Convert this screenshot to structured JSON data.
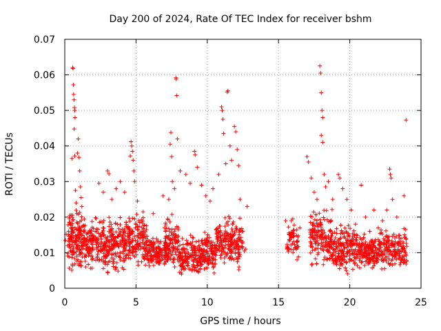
{
  "chart_data": {
    "type": "scatter",
    "title": "Day 200 of 2024, Rate Of TEC Index for receiver bshm",
    "xlabel": "GPS time / hours",
    "ylabel": "ROTI / TECUs",
    "xlim": [
      0,
      25
    ],
    "ylim": [
      0,
      0.07
    ],
    "x_ticks": [
      "0",
      "5",
      "10",
      "15",
      "20",
      "25"
    ],
    "y_ticks": [
      "0",
      "0.01",
      "0.02",
      "0.03",
      "0.04",
      "0.05",
      "0.06",
      "0.07"
    ],
    "grid": true,
    "marker": "plus",
    "color": "#ff0000",
    "series": [
      {
        "points": [
          [
            0.05,
            0.0135
          ],
          [
            0.1,
            0.0152
          ],
          [
            0.2,
            0.012
          ],
          [
            0.3,
            0.0088
          ],
          [
            0.35,
            0.02
          ],
          [
            0.45,
            0.015
          ],
          [
            0.5,
            0.0365
          ],
          [
            0.55,
            0.062
          ],
          [
            0.58,
            0.0618
          ],
          [
            0.6,
            0.0572
          ],
          [
            0.62,
            0.0545
          ],
          [
            0.65,
            0.053
          ],
          [
            0.68,
            0.0508
          ],
          [
            0.7,
            0.05
          ],
          [
            0.72,
            0.048
          ],
          [
            0.66,
            0.0448
          ],
          [
            0.7,
            0.0372
          ],
          [
            0.75,
            0.0275
          ],
          [
            0.8,
            0.024
          ],
          [
            0.85,
            0.021
          ],
          [
            0.9,
            0.038
          ],
          [
            0.95,
            0.042
          ],
          [
            1.0,
            0.0368
          ],
          [
            1.05,
            0.033
          ],
          [
            1.1,
            0.0285
          ],
          [
            1.15,
            0.0255
          ],
          [
            1.2,
            0.023
          ],
          [
            2.4,
            0.0295
          ],
          [
            2.7,
            0.027
          ],
          [
            3.0,
            0.033
          ],
          [
            3.1,
            0.0322
          ],
          [
            3.3,
            0.025
          ],
          [
            3.6,
            0.028
          ],
          [
            3.9,
            0.03
          ],
          [
            4.2,
            0.027
          ],
          [
            4.6,
            0.0372
          ],
          [
            4.65,
            0.0412
          ],
          [
            4.7,
            0.04
          ],
          [
            4.75,
            0.0385
          ],
          [
            4.8,
            0.036
          ],
          [
            4.85,
            0.033
          ],
          [
            4.9,
            0.03
          ],
          [
            5.1,
            0.0245
          ],
          [
            5.5,
            0.0215
          ],
          [
            6.2,
            0.021
          ],
          [
            6.9,
            0.026
          ],
          [
            7.3,
            0.025
          ],
          [
            7.4,
            0.0405
          ],
          [
            7.45,
            0.0438
          ],
          [
            7.5,
            0.037
          ],
          [
            7.55,
            0.03
          ],
          [
            7.7,
            0.028
          ],
          [
            7.8,
            0.0592
          ],
          [
            7.82,
            0.0588
          ],
          [
            7.85,
            0.0542
          ],
          [
            7.9,
            0.042
          ],
          [
            8.1,
            0.033
          ],
          [
            8.5,
            0.032
          ],
          [
            8.8,
            0.0295
          ],
          [
            9.1,
            0.0385
          ],
          [
            9.15,
            0.0375
          ],
          [
            9.3,
            0.034
          ],
          [
            9.6,
            0.029
          ],
          [
            9.9,
            0.026
          ],
          [
            10.2,
            0.0245
          ],
          [
            10.4,
            0.028
          ],
          [
            10.8,
            0.032
          ],
          [
            11.0,
            0.051
          ],
          [
            11.05,
            0.05
          ],
          [
            11.1,
            0.0475
          ],
          [
            11.15,
            0.0435
          ],
          [
            11.3,
            0.035
          ],
          [
            11.4,
            0.0552
          ],
          [
            11.45,
            0.0555
          ],
          [
            11.6,
            0.04
          ],
          [
            11.7,
            0.036
          ],
          [
            11.9,
            0.0455
          ],
          [
            12.0,
            0.044
          ],
          [
            12.1,
            0.039
          ],
          [
            12.2,
            0.0345
          ],
          [
            12.3,
            0.025
          ],
          [
            12.5,
            0.016
          ],
          [
            12.6,
            0.0105
          ],
          [
            12.7,
            0.011
          ],
          [
            12.8,
            0.023
          ],
          [
            15.5,
            0.019
          ],
          [
            15.7,
            0.0172
          ],
          [
            15.8,
            0.015
          ],
          [
            15.9,
            0.019
          ],
          [
            16.0,
            0.0195
          ],
          [
            16.1,
            0.0178
          ],
          [
            16.2,
            0.0115
          ],
          [
            16.3,
            0.008
          ],
          [
            16.4,
            0.0088
          ],
          [
            16.5,
            0.017
          ],
          [
            17.0,
            0.037
          ],
          [
            17.1,
            0.0355
          ],
          [
            17.3,
            0.031
          ],
          [
            17.5,
            0.027
          ],
          [
            17.7,
            0.025
          ],
          [
            17.9,
            0.0625
          ],
          [
            17.95,
            0.0605
          ],
          [
            18.0,
            0.055
          ],
          [
            18.05,
            0.05
          ],
          [
            18.1,
            0.048
          ],
          [
            18.0,
            0.043
          ],
          [
            18.1,
            0.041
          ],
          [
            18.2,
            0.032
          ],
          [
            18.3,
            0.0285
          ],
          [
            18.5,
            0.03
          ],
          [
            18.8,
            0.025
          ],
          [
            19.2,
            0.032
          ],
          [
            19.3,
            0.031
          ],
          [
            19.5,
            0.028
          ],
          [
            19.8,
            0.025
          ],
          [
            20.1,
            0.022
          ],
          [
            20.4,
            0.018
          ],
          [
            20.8,
            0.029
          ],
          [
            21.1,
            0.02
          ],
          [
            21.4,
            0.016
          ],
          [
            21.7,
            0.022
          ],
          [
            22.0,
            0.017
          ],
          [
            22.3,
            0.019
          ],
          [
            22.6,
            0.022
          ],
          [
            22.8,
            0.0335
          ],
          [
            22.85,
            0.032
          ],
          [
            22.9,
            0.031
          ],
          [
            23.0,
            0.025
          ],
          [
            23.3,
            0.02
          ],
          [
            23.6,
            0.014
          ],
          [
            23.8,
            0.026
          ],
          [
            23.95,
            0.0473
          ],
          [
            23.9,
            0.01
          ],
          [
            23.7,
            0.008
          ]
        ]
      }
    ],
    "dense_bands": [
      {
        "x": [
          0.2,
          1.4
        ],
        "y": [
          0.003,
          0.024
        ],
        "count": 170
      },
      {
        "x": [
          1.4,
          4.4
        ],
        "y": [
          0.003,
          0.022
        ],
        "count": 330
      },
      {
        "x": [
          4.4,
          5.8
        ],
        "y": [
          0.004,
          0.022
        ],
        "count": 150
      },
      {
        "x": [
          5.8,
          7.3
        ],
        "y": [
          0.004,
          0.016
        ],
        "count": 150
      },
      {
        "x": [
          7.0,
          8.0
        ],
        "y": [
          0.003,
          0.022
        ],
        "count": 100
      },
      {
        "x": [
          8.0,
          9.6
        ],
        "y": [
          0.002,
          0.016
        ],
        "count": 170
      },
      {
        "x": [
          9.6,
          10.6
        ],
        "y": [
          0.002,
          0.018
        ],
        "count": 110
      },
      {
        "x": [
          10.6,
          12.5
        ],
        "y": [
          0.004,
          0.022
        ],
        "count": 200
      },
      {
        "x": [
          15.6,
          16.4
        ],
        "y": [
          0.008,
          0.019
        ],
        "count": 50
      },
      {
        "x": [
          17.2,
          18.8
        ],
        "y": [
          0.004,
          0.024
        ],
        "count": 170
      },
      {
        "x": [
          18.8,
          20.5
        ],
        "y": [
          0.003,
          0.02
        ],
        "count": 180
      },
      {
        "x": [
          20.5,
          22.0
        ],
        "y": [
          0.004,
          0.016
        ],
        "count": 150
      },
      {
        "x": [
          22.0,
          24.0
        ],
        "y": [
          0.004,
          0.018
        ],
        "count": 180
      }
    ]
  }
}
